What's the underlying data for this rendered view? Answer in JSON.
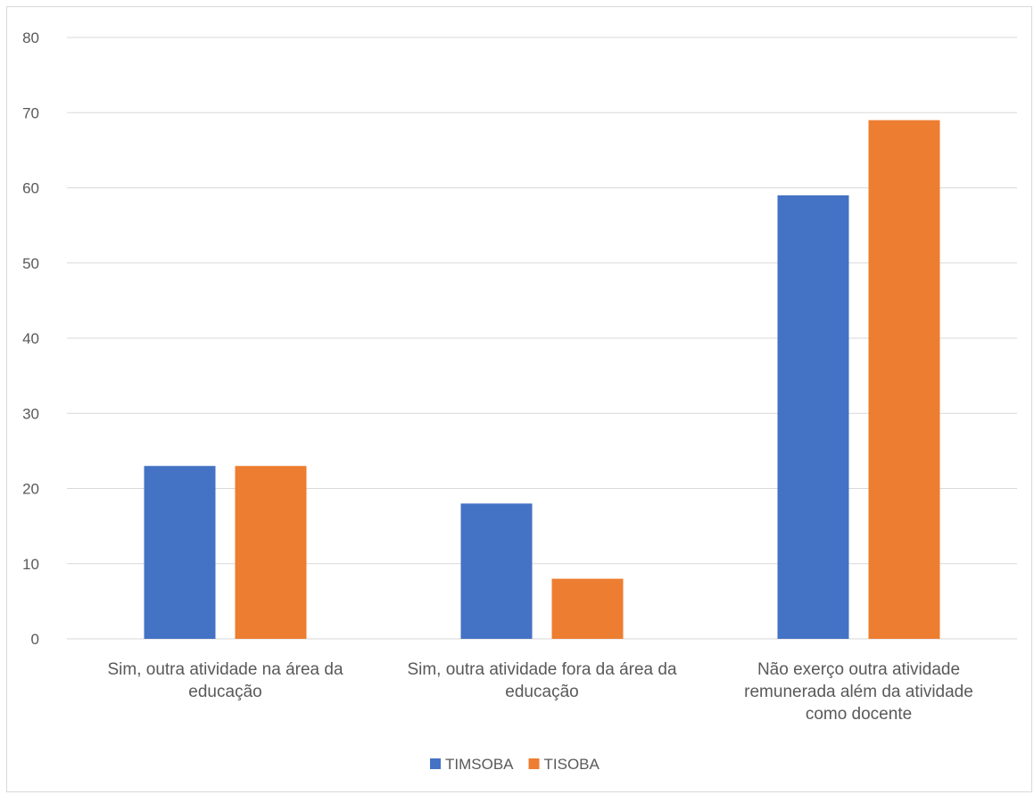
{
  "chart_data": {
    "type": "bar",
    "title": "",
    "xlabel": "",
    "ylabel": "",
    "ylim": [
      0,
      80
    ],
    "yticks": [
      0,
      10,
      20,
      30,
      40,
      50,
      60,
      70,
      80
    ],
    "grid": true,
    "legend_position": "bottom",
    "categories": [
      [
        "Sim, outra atividade na área da",
        "educação"
      ],
      [
        "Sim, outra atividade fora da área da",
        "educação"
      ],
      [
        "Não exerço outra atividade",
        "remunerada além da atividade",
        "como docente"
      ]
    ],
    "series": [
      {
        "name": "TIMSOBA",
        "color": "#4472C4",
        "values": [
          23,
          18,
          59
        ]
      },
      {
        "name": "TISOBA",
        "color": "#ED7D31",
        "values": [
          23,
          8,
          69
        ]
      }
    ]
  }
}
